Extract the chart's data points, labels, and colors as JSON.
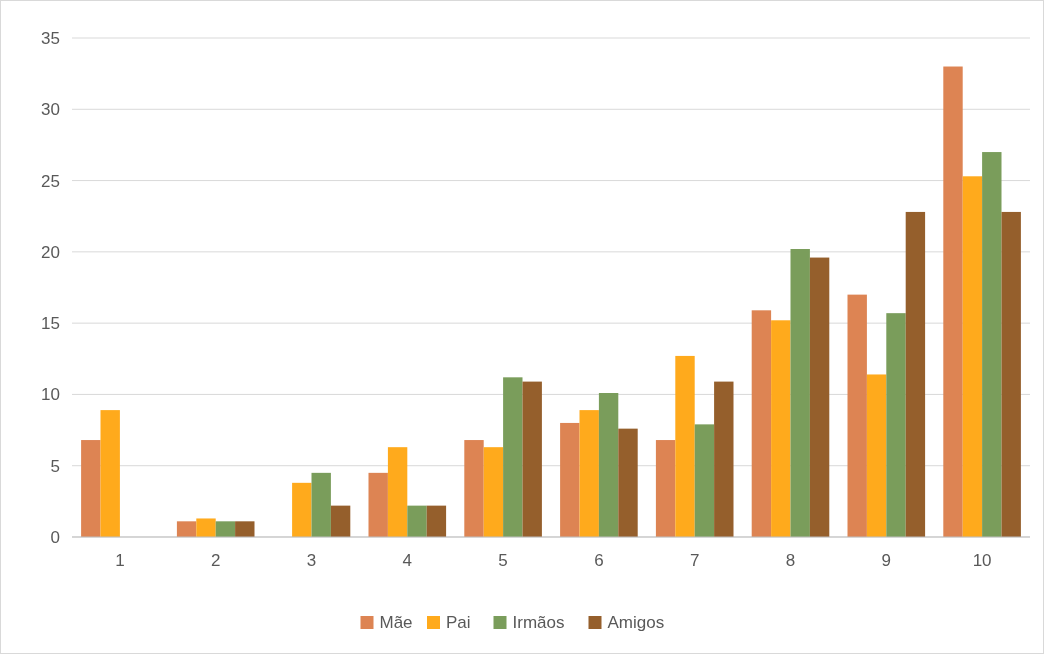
{
  "chart_data": {
    "type": "bar",
    "categories": [
      "1",
      "2",
      "3",
      "4",
      "5",
      "6",
      "7",
      "8",
      "9",
      "10"
    ],
    "series": [
      {
        "name": "Mãe",
        "color": "#dd8453",
        "values": [
          6.8,
          1.1,
          0,
          4.5,
          6.8,
          8,
          6.8,
          15.9,
          17,
          33
        ]
      },
      {
        "name": "Pai",
        "color": "#ffaa1c",
        "values": [
          8.9,
          1.3,
          3.8,
          6.3,
          6.3,
          8.9,
          12.7,
          15.2,
          11.4,
          25.3
        ]
      },
      {
        "name": "Irmãos",
        "color": "#7a9d5b",
        "values": [
          0,
          1.1,
          4.5,
          2.2,
          11.2,
          10.1,
          7.9,
          20.2,
          15.7,
          27
        ]
      },
      {
        "name": "Amigos",
        "color": "#955f2c",
        "values": [
          0,
          1.1,
          2.2,
          2.2,
          10.9,
          7.6,
          10.9,
          19.6,
          22.8,
          22.8
        ]
      }
    ],
    "ylim": [
      0,
      35
    ],
    "yticks": [
      0,
      5,
      10,
      15,
      20,
      25,
      30,
      35
    ],
    "grid": "y",
    "legend": "bottom"
  }
}
